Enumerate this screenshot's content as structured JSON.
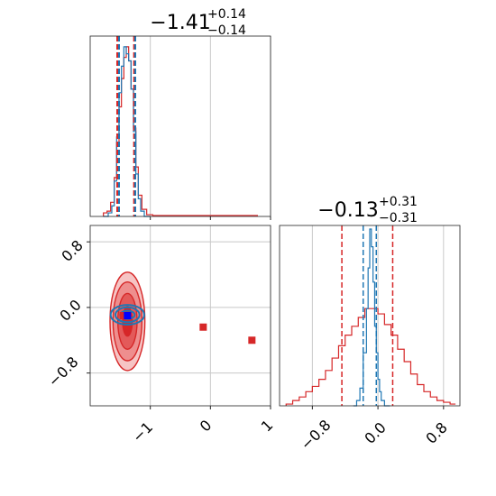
{
  "chart_data": {
    "type": "scatter",
    "description": "corner plot",
    "params": [
      {
        "title_main": "−1.41",
        "title_sup": "+0.14",
        "title_sub": "−0.14",
        "range": [
          -2.0,
          1.0
        ],
        "ticks": [
          -1,
          0,
          1
        ],
        "tick_labels": [
          "−1",
          "0",
          "1"
        ],
        "red_quantiles": [
          -1.55,
          -1.27
        ],
        "blue_quantiles": [
          -1.52,
          -1.25
        ]
      },
      {
        "title_main": "−0.13",
        "title_sup": "+0.31",
        "title_sub": "−0.31",
        "range": [
          -1.2,
          1.0
        ],
        "ticks": [
          -0.8,
          0.0,
          0.8
        ],
        "tick_labels": [
          "−0.8",
          "0.0",
          "0.8"
        ],
        "red_quantiles": [
          -0.44,
          0.18
        ],
        "blue_quantiles": [
          -0.18,
          -0.02
        ]
      }
    ],
    "series": [
      {
        "name": "",
        "color": "#d62728",
        "hist1": [
          [
            -1.78,
            0.02
          ],
          [
            -1.72,
            0.03
          ],
          [
            -1.66,
            0.08
          ],
          [
            -1.6,
            0.22
          ],
          [
            -1.56,
            0.42
          ],
          [
            -1.52,
            0.62
          ],
          [
            -1.48,
            0.78
          ],
          [
            -1.44,
            0.9
          ],
          [
            -1.4,
            0.96
          ],
          [
            -1.36,
            0.88
          ],
          [
            -1.32,
            0.72
          ],
          [
            -1.28,
            0.5
          ],
          [
            -1.24,
            0.28
          ],
          [
            -1.2,
            0.12
          ],
          [
            -1.14,
            0.04
          ],
          [
            -1.06,
            0.01
          ],
          [
            -0.96,
            0.005
          ],
          [
            -0.5,
            0.005
          ],
          [
            0.2,
            0.005
          ],
          [
            0.7,
            0.005
          ]
        ],
        "hist2": [
          [
            -1.12,
            0.01
          ],
          [
            -1.04,
            0.03
          ],
          [
            -0.96,
            0.05
          ],
          [
            -0.88,
            0.08
          ],
          [
            -0.8,
            0.11
          ],
          [
            -0.72,
            0.15
          ],
          [
            -0.64,
            0.2
          ],
          [
            -0.56,
            0.27
          ],
          [
            -0.48,
            0.34
          ],
          [
            -0.4,
            0.4
          ],
          [
            -0.32,
            0.45
          ],
          [
            -0.24,
            0.5
          ],
          [
            -0.16,
            0.55
          ],
          [
            -0.08,
            0.55
          ],
          [
            0.0,
            0.52
          ],
          [
            0.08,
            0.46
          ],
          [
            0.16,
            0.4
          ],
          [
            0.24,
            0.32
          ],
          [
            0.32,
            0.25
          ],
          [
            0.4,
            0.18
          ],
          [
            0.48,
            0.12
          ],
          [
            0.56,
            0.08
          ],
          [
            0.64,
            0.05
          ],
          [
            0.72,
            0.03
          ],
          [
            0.8,
            0.02
          ],
          [
            0.88,
            0.01
          ]
        ],
        "contour_center": [
          -1.38,
          -0.17
        ],
        "contour_radii": [
          [
            0.29,
            0.6
          ],
          [
            0.24,
            0.48
          ],
          [
            0.16,
            0.34
          ],
          [
            0.08,
            0.18
          ]
        ],
        "markers": [
          [
            -1.45,
            -0.1
          ],
          [
            -0.12,
            -0.24
          ],
          [
            0.69,
            -0.4
          ]
        ]
      },
      {
        "name": "",
        "color": "#1f77b4",
        "hist1": [
          [
            -1.78,
            0.0
          ],
          [
            -1.7,
            0.02
          ],
          [
            -1.64,
            0.06
          ],
          [
            -1.6,
            0.2
          ],
          [
            -1.56,
            0.45
          ],
          [
            -1.52,
            0.7
          ],
          [
            -1.48,
            0.85
          ],
          [
            -1.44,
            0.96
          ],
          [
            -1.4,
            0.92
          ],
          [
            -1.36,
            0.88
          ],
          [
            -1.32,
            0.72
          ],
          [
            -1.28,
            0.48
          ],
          [
            -1.24,
            0.24
          ],
          [
            -1.2,
            0.1
          ],
          [
            -1.16,
            0.03
          ],
          [
            -1.1,
            0.0
          ]
        ],
        "hist2": [
          [
            -0.3,
            0.0
          ],
          [
            -0.26,
            0.03
          ],
          [
            -0.22,
            0.1
          ],
          [
            -0.18,
            0.3
          ],
          [
            -0.14,
            0.55
          ],
          [
            -0.12,
            0.78
          ],
          [
            -0.1,
            1.0
          ],
          [
            -0.08,
            0.9
          ],
          [
            -0.06,
            0.7
          ],
          [
            -0.04,
            0.45
          ],
          [
            -0.02,
            0.3
          ],
          [
            0.0,
            0.15
          ],
          [
            0.02,
            0.08
          ],
          [
            0.04,
            0.03
          ],
          [
            0.08,
            0.0
          ]
        ],
        "contour_center": [
          -1.38,
          -0.09
        ],
        "contour_radii": [
          [
            0.28,
            0.12
          ],
          [
            0.2,
            0.09
          ],
          [
            0.12,
            0.05
          ]
        ],
        "markers": [
          [
            -1.38,
            -0.1
          ]
        ]
      }
    ],
    "grid": true
  }
}
